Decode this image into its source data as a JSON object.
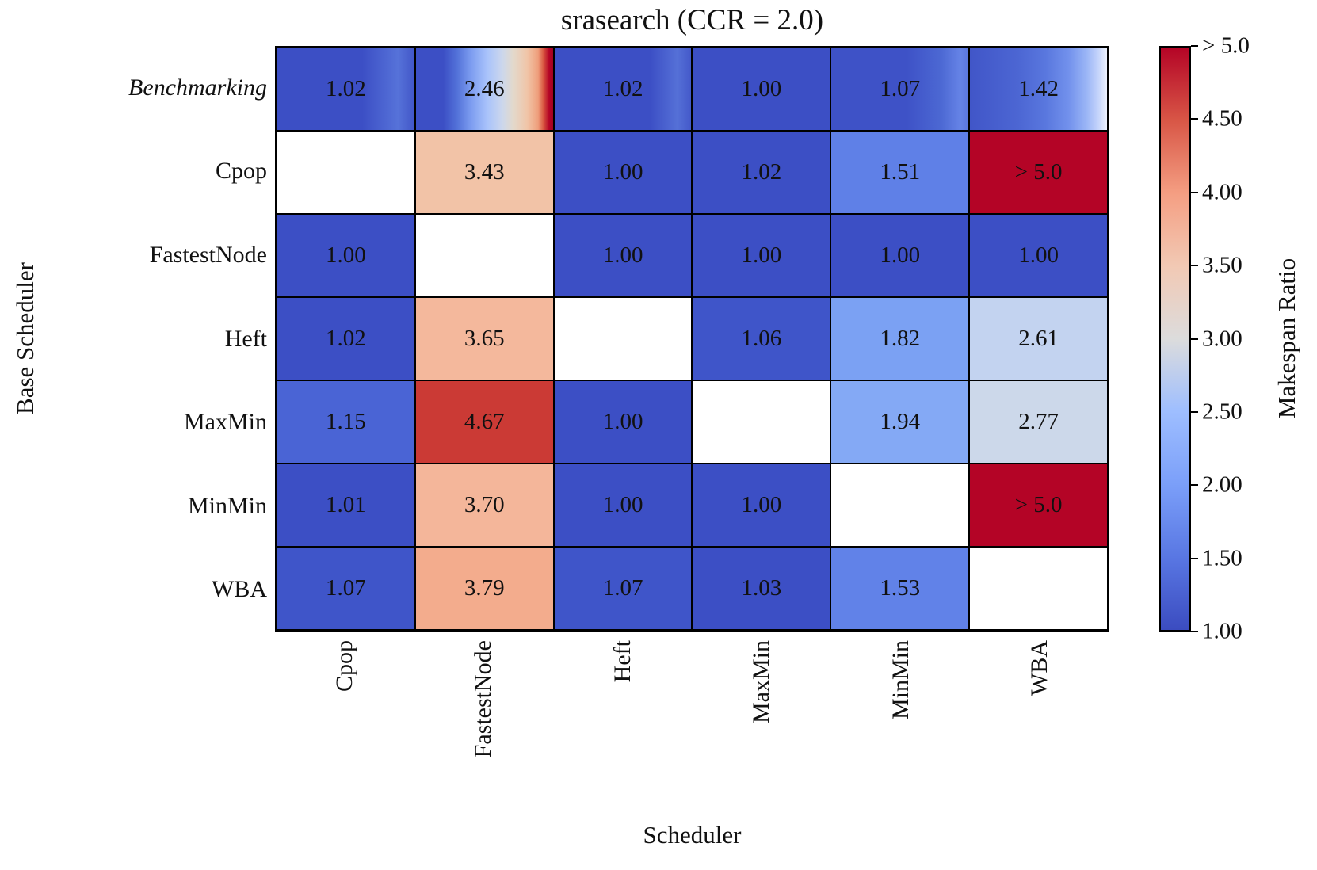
{
  "chart_data": {
    "type": "heatmap",
    "title": "srasearch (CCR = 2.0)",
    "xlabel": "Scheduler",
    "ylabel": "Base Scheduler",
    "columns": [
      "Cpop",
      "FastestNode",
      "Heft",
      "MaxMin",
      "MinMin",
      "WBA"
    ],
    "rows": [
      {
        "label": "Benchmarking",
        "italic": true
      },
      {
        "label": "Cpop",
        "italic": false
      },
      {
        "label": "FastestNode",
        "italic": false
      },
      {
        "label": "Heft",
        "italic": false
      },
      {
        "label": "MaxMin",
        "italic": false
      },
      {
        "label": "MinMin",
        "italic": false
      },
      {
        "label": "WBA",
        "italic": false
      }
    ],
    "value_scale": {
      "min": 1.0,
      "max": 5.0,
      "over_label": "> 5.0",
      "colormap": "coolwarm"
    },
    "values": [
      [
        1.02,
        2.46,
        1.02,
        1.0,
        1.07,
        1.42
      ],
      [
        null,
        3.43,
        1.0,
        1.02,
        1.51,
        "> 5.0"
      ],
      [
        1.0,
        null,
        1.0,
        1.0,
        1.0,
        1.0
      ],
      [
        1.02,
        3.65,
        null,
        1.06,
        1.82,
        2.61
      ],
      [
        1.15,
        4.67,
        1.0,
        null,
        1.94,
        2.77
      ],
      [
        1.01,
        3.7,
        1.0,
        1.0,
        null,
        "> 5.0"
      ],
      [
        1.07,
        3.79,
        1.07,
        1.03,
        1.53,
        null
      ]
    ],
    "cells": [
      [
        {
          "v": "1.02",
          "grad": [
            "#3c4fc5 0%",
            "#3c4fc5 62%",
            "#5672d9 88%",
            "#4156c8 100%"
          ]
        },
        {
          "v": "2.46",
          "grad": [
            "#3c4fc5 0%",
            "#3c4fc5 20%",
            "#5372d9 30%",
            "#7c9cf0 40%",
            "#a9c3fb 52%",
            "#ccd7ec 63%",
            "#e3d9cb 71%",
            "#f0c5a8 81%",
            "#ef9f7c 89%",
            "#d8543f 93%",
            "#b40426 97%",
            "#a00322 100%"
          ]
        },
        {
          "v": "1.02",
          "grad": [
            "#3c4fc5 0%",
            "#3c4fc5 70%",
            "#5570d7 90%",
            "#4459ca 100%"
          ]
        },
        {
          "v": "1.00",
          "grad": [
            "#3c4fc5 0%",
            "#3c4fc5 100%"
          ]
        },
        {
          "v": "1.07",
          "grad": [
            "#3e52c7 0%",
            "#3e52c7 55%",
            "#4c68d3 80%",
            "#6583e6 94%",
            "#5a77de 100%"
          ]
        },
        {
          "v": "1.42",
          "grad": [
            "#4156c8 0%",
            "#4c66d3 35%",
            "#5977de 55%",
            "#7291ec 72%",
            "#9ab5f6 85%",
            "#c6d5fb 94%",
            "#eef2fd 100%"
          ]
        }
      ],
      [
        {
          "v": "",
          "bg": "#ffffff"
        },
        {
          "v": "3.43",
          "bg": "#f2c3a7"
        },
        {
          "v": "1.00",
          "bg": "#3c4fc5"
        },
        {
          "v": "1.02",
          "bg": "#3c4fc5"
        },
        {
          "v": "1.51",
          "bg": "#5f80e7"
        },
        {
          "v": "> 5.0",
          "bg": "#b40426"
        }
      ],
      [
        {
          "v": "1.00",
          "bg": "#3c4fc5"
        },
        {
          "v": "",
          "bg": "#ffffff"
        },
        {
          "v": "1.00",
          "bg": "#3c4fc5"
        },
        {
          "v": "1.00",
          "bg": "#3c4fc5"
        },
        {
          "v": "1.00",
          "bg": "#3c4fc5"
        },
        {
          "v": "1.00",
          "bg": "#3c4fc5"
        }
      ],
      [
        {
          "v": "1.02",
          "bg": "#3c4fc5"
        },
        {
          "v": "3.65",
          "bg": "#f4b89c"
        },
        {
          "v": "",
          "bg": "#ffffff"
        },
        {
          "v": "1.06",
          "bg": "#3f55c9"
        },
        {
          "v": "1.82",
          "bg": "#7ba1f3"
        },
        {
          "v": "2.61",
          "bg": "#c3d3f0"
        }
      ],
      [
        {
          "v": "1.15",
          "bg": "#4a64d5"
        },
        {
          "v": "4.67",
          "bg": "#cb3a35"
        },
        {
          "v": "1.00",
          "bg": "#3c4fc5"
        },
        {
          "v": "",
          "bg": "#ffffff"
        },
        {
          "v": "1.94",
          "bg": "#84a9f5"
        },
        {
          "v": "2.77",
          "bg": "#ccd8ea"
        }
      ],
      [
        {
          "v": "1.01",
          "bg": "#3c4fc5"
        },
        {
          "v": "3.70",
          "bg": "#f4b69a"
        },
        {
          "v": "1.00",
          "bg": "#3c4fc5"
        },
        {
          "v": "1.00",
          "bg": "#3c4fc5"
        },
        {
          "v": "",
          "bg": "#ffffff"
        },
        {
          "v": "> 5.0",
          "bg": "#b40426"
        }
      ],
      [
        {
          "v": "1.07",
          "bg": "#3f55c9"
        },
        {
          "v": "3.79",
          "bg": "#f3ac8d"
        },
        {
          "v": "1.07",
          "bg": "#3f55c9"
        },
        {
          "v": "1.03",
          "bg": "#3c4fc5"
        },
        {
          "v": "1.53",
          "bg": "#6182e8"
        },
        {
          "v": "",
          "bg": "#ffffff"
        }
      ]
    ],
    "colorbar": {
      "label": "Makespan Ratio",
      "ticks_top_to_bottom": [
        "> 5.0",
        "4.50",
        "4.00",
        "3.50",
        "3.00",
        "2.50",
        "2.00",
        "1.50",
        "1.00"
      ],
      "gradient_bottom_to_top": [
        "#3b4cc0",
        "#5977e3",
        "#7b9ff9",
        "#9ebeff",
        "#dcdcdc",
        "#f2c9b4",
        "#f49e82",
        "#d85646",
        "#b40426"
      ]
    },
    "legend_position": "right",
    "grid": "cell-borders-black"
  }
}
